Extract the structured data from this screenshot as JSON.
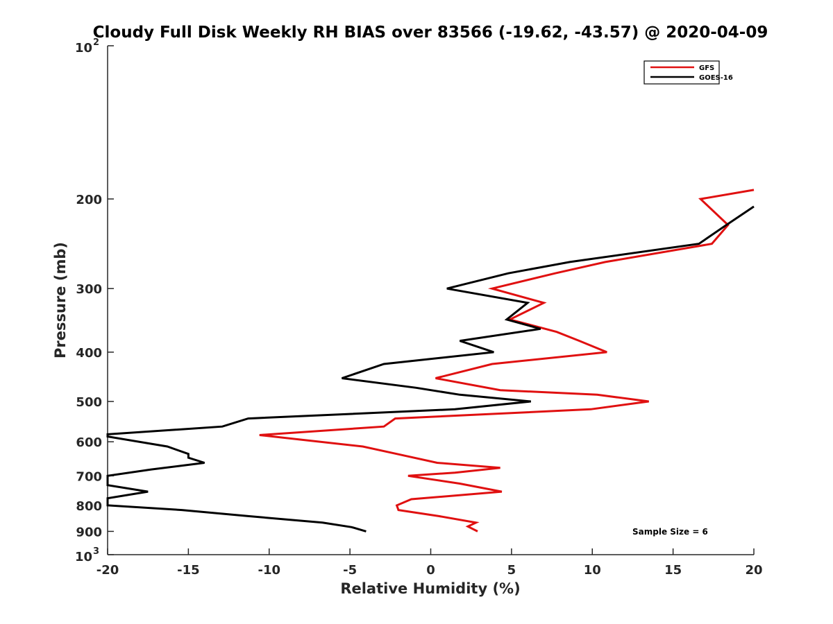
{
  "chart_data": {
    "type": "line",
    "title": "Cloudy Full Disk Weekly RH BIAS over 83566 (-19.62, -43.57) @ 2020-04-09",
    "xlabel": "Relative Humidity (%)",
    "ylabel": "Pressure (mb)",
    "xlim": [
      -20,
      20
    ],
    "ylim": [
      1000,
      100
    ],
    "y_scale": "log",
    "x_ticks": [
      "-20",
      "-15",
      "-10",
      "-5",
      "0",
      "5",
      "10",
      "15",
      "20"
    ],
    "y_ticks": [
      {
        "value": 100,
        "base": "10",
        "exp": "2"
      },
      {
        "value": 200,
        "label": "200"
      },
      {
        "value": 300,
        "label": "300"
      },
      {
        "value": 400,
        "label": "400"
      },
      {
        "value": 500,
        "label": "500"
      },
      {
        "value": 600,
        "label": "600"
      },
      {
        "value": 700,
        "label": "700"
      },
      {
        "value": 800,
        "label": "800"
      },
      {
        "value": 900,
        "label": "900"
      },
      {
        "value": 1000,
        "base": "10",
        "exp": "3"
      }
    ],
    "legend_position": "top-right",
    "grid": false,
    "annotation": "Sample Size = 6",
    "series": [
      {
        "name": "GFS",
        "color": "#e01010",
        "points": [
          [
            20.0,
            192
          ],
          [
            16.7,
            200
          ],
          [
            18.4,
            225
          ],
          [
            17.4,
            245
          ],
          [
            10.8,
            266
          ],
          [
            7.7,
            280
          ],
          [
            3.8,
            300
          ],
          [
            7.0,
            320
          ],
          [
            4.9,
            345
          ],
          [
            7.8,
            365
          ],
          [
            9.2,
            380
          ],
          [
            10.9,
            400
          ],
          [
            3.8,
            422
          ],
          [
            0.3,
            450
          ],
          [
            4.3,
            475
          ],
          [
            10.3,
            485
          ],
          [
            13.5,
            500
          ],
          [
            9.9,
            518
          ],
          [
            -2.2,
            540
          ],
          [
            -2.9,
            560
          ],
          [
            -10.6,
            582
          ],
          [
            -4.2,
            613
          ],
          [
            -2.1,
            634
          ],
          [
            0.4,
            660
          ],
          [
            4.3,
            675
          ],
          [
            1.5,
            690
          ],
          [
            -1.4,
            700
          ],
          [
            1.8,
            725
          ],
          [
            4.4,
            752
          ],
          [
            -1.2,
            778
          ],
          [
            -2.1,
            800
          ],
          [
            -2.0,
            817
          ],
          [
            0.5,
            840
          ],
          [
            2.8,
            865
          ],
          [
            2.3,
            880
          ],
          [
            2.9,
            900
          ]
        ]
      },
      {
        "name": "GOES-16",
        "color": "#000000",
        "points": [
          [
            20.0,
            207
          ],
          [
            18.3,
            225
          ],
          [
            16.6,
            245
          ],
          [
            8.6,
            266
          ],
          [
            4.8,
            280
          ],
          [
            1.0,
            300
          ],
          [
            6.0,
            320
          ],
          [
            4.7,
            345
          ],
          [
            6.8,
            360
          ],
          [
            1.8,
            380
          ],
          [
            3.9,
            400
          ],
          [
            -2.9,
            422
          ],
          [
            -5.5,
            450
          ],
          [
            -0.9,
            470
          ],
          [
            1.8,
            485
          ],
          [
            6.2,
            500
          ],
          [
            1.5,
            518
          ],
          [
            -11.3,
            540
          ],
          [
            -12.9,
            560
          ],
          [
            -20.0,
            580
          ],
          [
            -20.0,
            586
          ],
          [
            -16.3,
            613
          ],
          [
            -15.0,
            634
          ],
          [
            -15.0,
            645
          ],
          [
            -14.0,
            660
          ],
          [
            -17.3,
            680
          ],
          [
            -20.0,
            700
          ],
          [
            -20.0,
            730
          ],
          [
            -17.5,
            752
          ],
          [
            -20.0,
            775
          ],
          [
            -20.0,
            800
          ],
          [
            -15.4,
            817
          ],
          [
            -11.3,
            840
          ],
          [
            -6.7,
            865
          ],
          [
            -4.9,
            883
          ],
          [
            -4.0,
            900
          ]
        ]
      }
    ]
  }
}
